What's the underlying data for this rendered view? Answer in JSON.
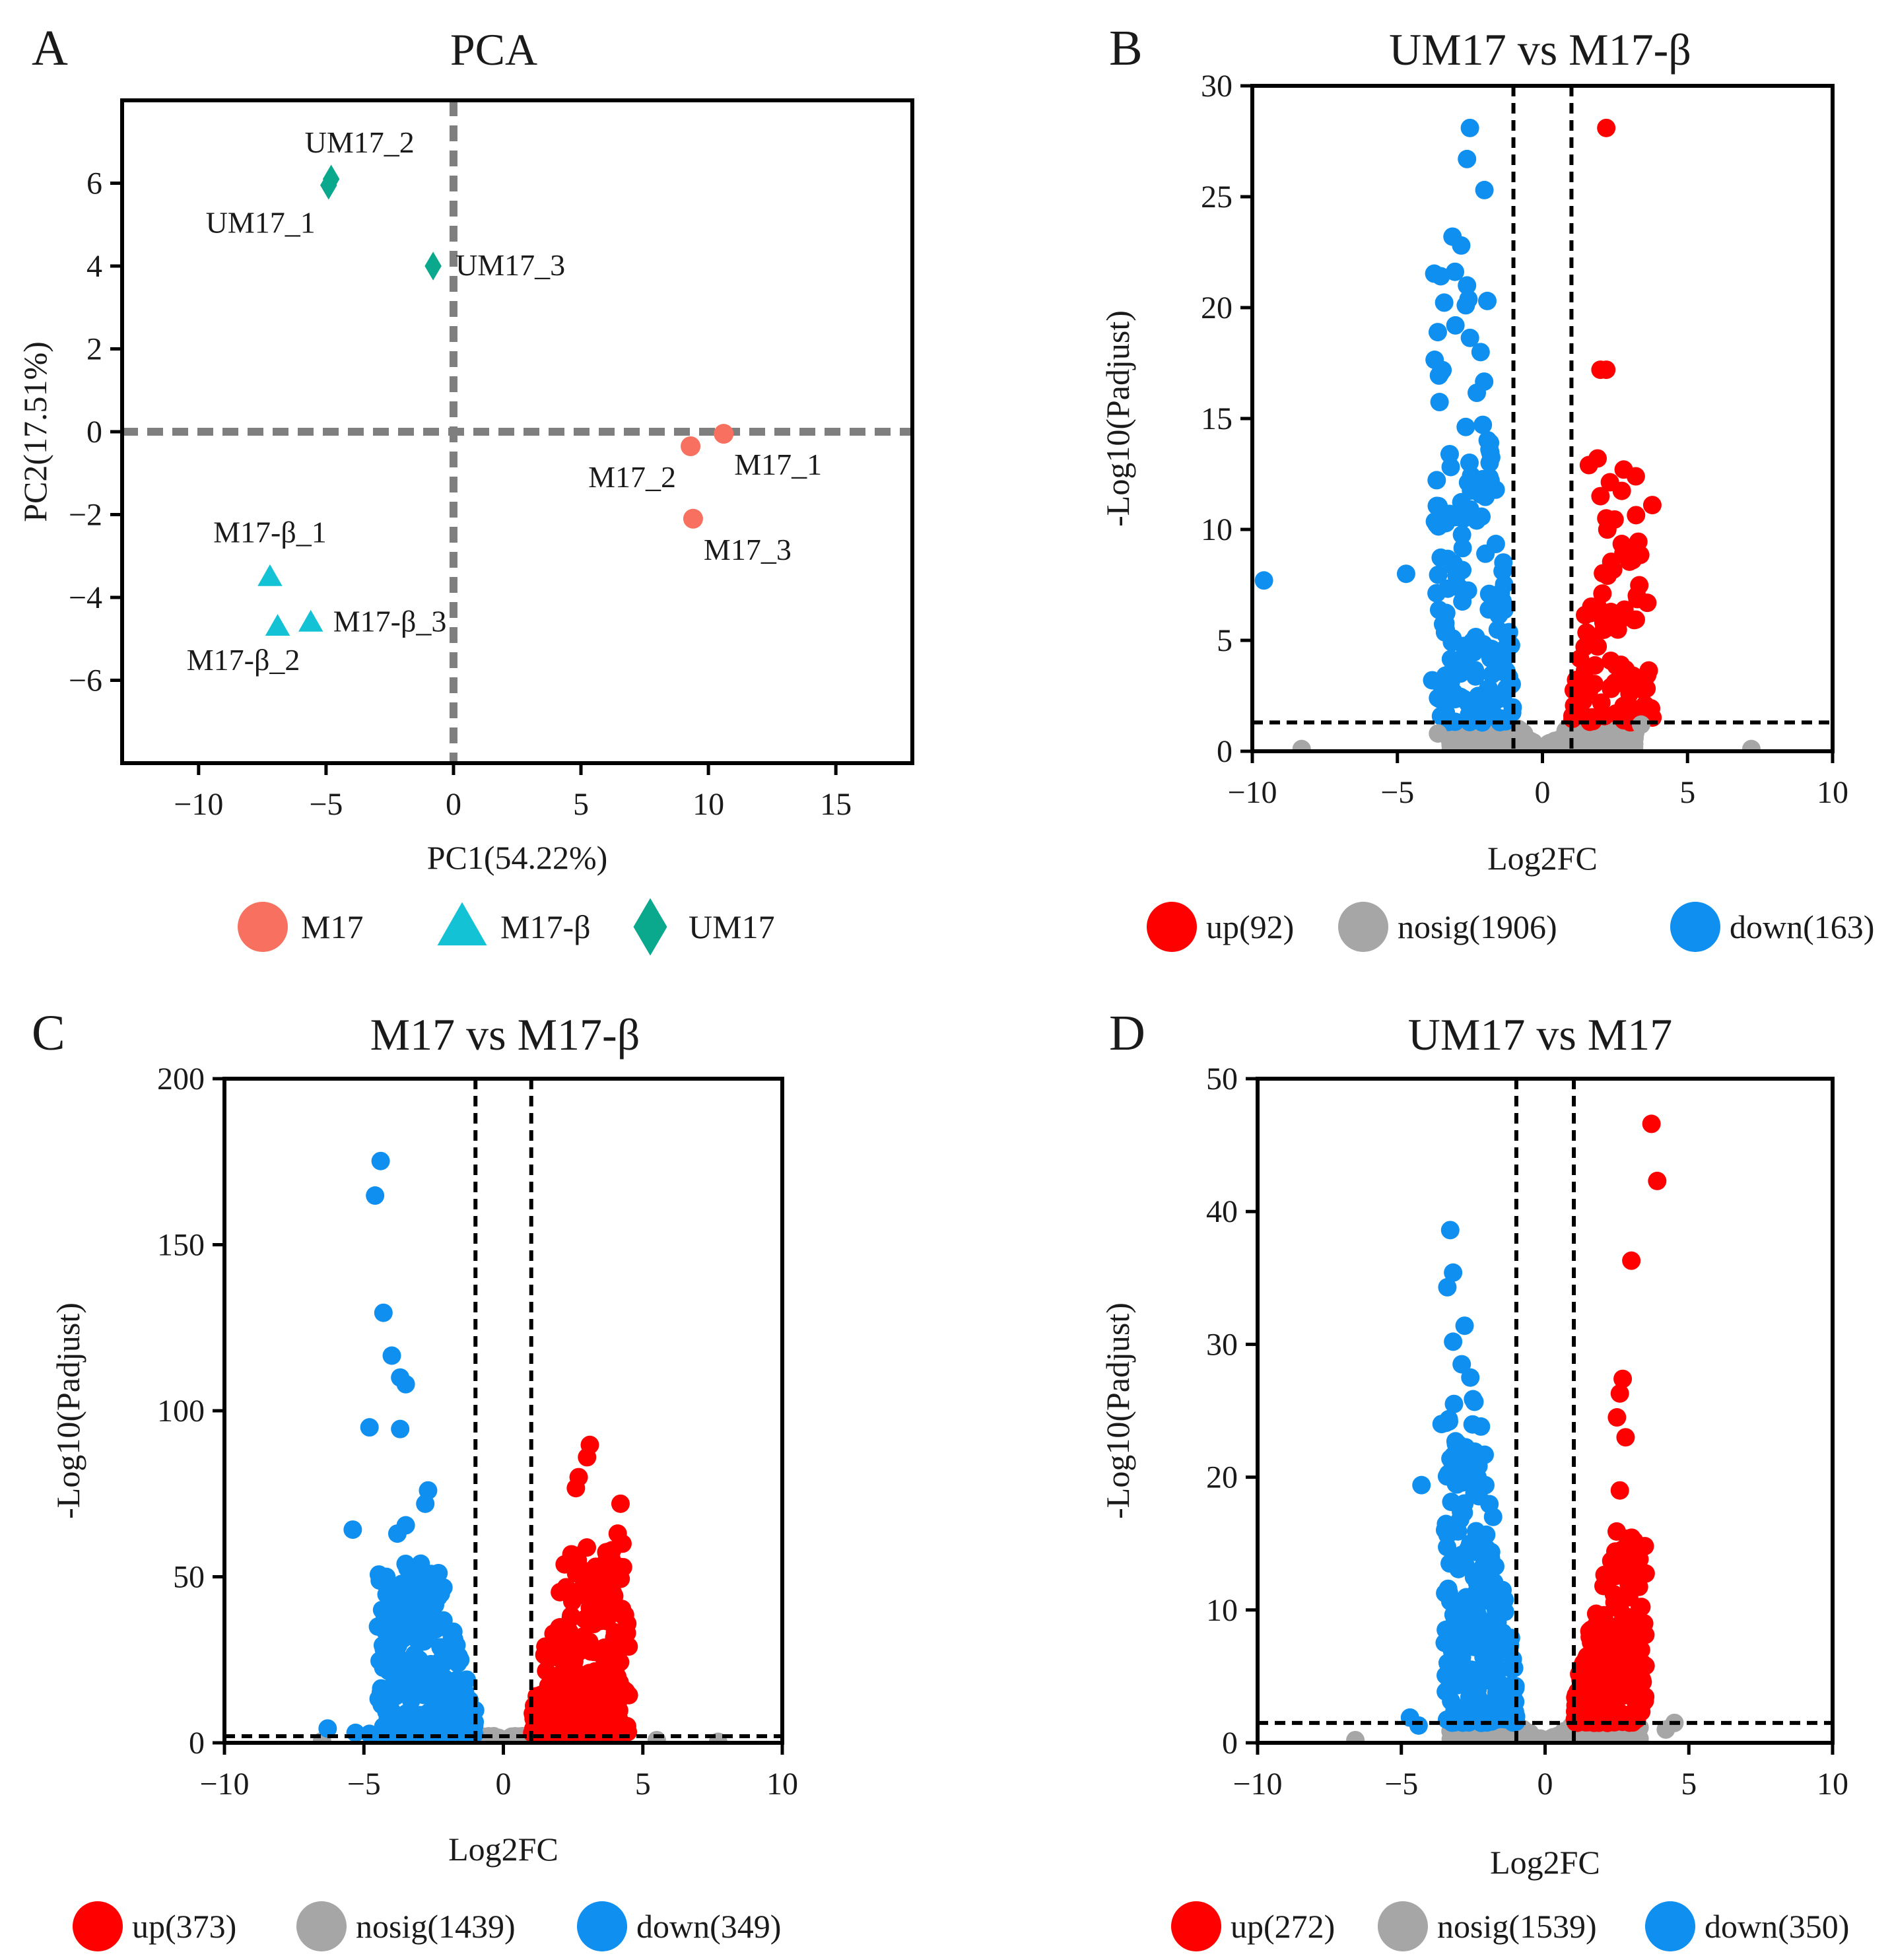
{
  "figure": {
    "colors": {
      "up": "#ff0000",
      "nosig": "#a6a6a6",
      "down": "#0f8ff0",
      "m17": "#f87060",
      "m17b": "#14c2d6",
      "um17": "#0aa88c",
      "refline": "#7f7f7f",
      "axis": "#000000"
    }
  },
  "chart_data": [
    {
      "panel": "A",
      "type": "scatter",
      "title": "PCA",
      "xlabel": "PC1(54.22%)",
      "ylabel": "PC2(17.51%)",
      "xlim": [
        -13,
        18
      ],
      "ylim": [
        -8,
        8
      ],
      "xticks": [
        -10,
        -5,
        0,
        5,
        10,
        15
      ],
      "xtick_labels": [
        "−10",
        "−5",
        "0",
        "5",
        "10",
        "15"
      ],
      "yticks": [
        -6,
        -4,
        -2,
        0,
        2,
        4,
        6
      ],
      "ytick_labels": [
        "−6",
        "−4",
        "−2",
        "0",
        "2",
        "4",
        "6"
      ],
      "reference_lines": {
        "x": 0,
        "y": 0
      },
      "legend": [
        {
          "label": "M17",
          "shape": "circle",
          "color_key": "m17"
        },
        {
          "label": "M17-β",
          "shape": "triangle",
          "color_key": "m17b"
        },
        {
          "label": "UM17",
          "shape": "diamond",
          "color_key": "um17"
        }
      ],
      "series": [
        {
          "name": "M17",
          "shape": "circle",
          "color_key": "m17",
          "points": [
            {
              "label": "M17_1",
              "x": 10.6,
              "y": -0.05,
              "label_pos": "below-right"
            },
            {
              "label": "M17_2",
              "x": 9.3,
              "y": -0.35,
              "label_pos": "below-left"
            },
            {
              "label": "M17_3",
              "x": 9.4,
              "y": -2.1,
              "label_pos": "below-right"
            }
          ]
        },
        {
          "name": "M17-β",
          "shape": "triangle",
          "color_key": "m17b",
          "points": [
            {
              "label": "M17-β_1",
              "x": -7.2,
              "y": -3.5,
              "label_pos": "above"
            },
            {
              "label": "M17-β_2",
              "x": -6.9,
              "y": -4.7,
              "label_pos": "below-left"
            },
            {
              "label": "M17-β_3",
              "x": -5.6,
              "y": -4.6,
              "label_pos": "right"
            }
          ]
        },
        {
          "name": "UM17",
          "shape": "diamond",
          "color_key": "um17",
          "points": [
            {
              "label": "UM17_2",
              "x": -4.8,
              "y": 6.1,
              "label_pos": "above-right"
            },
            {
              "label": "UM17_1",
              "x": -4.9,
              "y": 5.95,
              "label_pos": "below-left"
            },
            {
              "label": "UM17_3",
              "x": -0.8,
              "y": 4.0,
              "label_pos": "right"
            }
          ]
        }
      ]
    },
    {
      "panel": "B",
      "type": "scatter",
      "title": "UM17 vs M17-β",
      "xlabel": "Log2FC",
      "ylabel": "-Log10(Padjust)",
      "xlim": [
        -10,
        10
      ],
      "ylim": [
        0,
        30
      ],
      "xticks": [
        -10,
        -5,
        0,
        5,
        10
      ],
      "xtick_labels": [
        "−10",
        "−5",
        "0",
        "5",
        "10"
      ],
      "yticks": [
        0,
        5,
        10,
        15,
        20,
        25,
        30
      ],
      "ytick_labels": [
        "0",
        "5",
        "10",
        "15",
        "20",
        "25",
        "30"
      ],
      "vlines": [
        -1,
        1
      ],
      "hline": 1.3,
      "legend": [
        {
          "label": "up(92)",
          "color_key": "up"
        },
        {
          "label": "nosig(1906)",
          "color_key": "nosig"
        },
        {
          "label": "down(163)",
          "color_key": "down"
        }
      ],
      "counts": {
        "up": 92,
        "nosig": 1906,
        "down": 163
      },
      "sim": {
        "maxUp": 13,
        "maxDown": 22,
        "ymaxNS": 1.1,
        "xmaxNS": 3.2,
        "xmaxSig": 2.8,
        "nsDraw": 550
      },
      "highlight_points": {
        "up": [
          [
            2.2,
            28.1
          ],
          [
            2.0,
            17.2
          ],
          [
            2.2,
            17.2
          ],
          [
            2.8,
            12.7
          ],
          [
            2.7,
            3.9
          ],
          [
            2.5,
            3.1
          ],
          [
            2.8,
            1.4
          ],
          [
            1.9,
            13.2
          ],
          [
            1.6,
            12.9
          ],
          [
            2.0,
            11.5
          ],
          [
            2.2,
            10.5
          ]
        ],
        "down": [
          [
            -9.6,
            7.7
          ],
          [
            -4.7,
            8.0
          ],
          [
            -2.5,
            28.1
          ],
          [
            -2.6,
            26.7
          ],
          [
            -2.0,
            25.3
          ],
          [
            -3.1,
            23.2
          ],
          [
            -2.8,
            22.8
          ],
          [
            -2.6,
            21.0
          ],
          [
            -3.0,
            19.2
          ],
          [
            -1.9,
            20.3
          ],
          [
            -3.2,
            10.7
          ],
          [
            -3.8,
            3.2
          ],
          [
            -3.6,
            2.4
          ]
        ],
        "nosig": [
          [
            -8.3,
            0.1
          ],
          [
            7.2,
            0.1
          ],
          [
            3.4,
            1.2
          ],
          [
            -3.6,
            0.8
          ]
        ]
      }
    },
    {
      "panel": "C",
      "type": "scatter",
      "title": "M17 vs M17-β",
      "xlabel": "Log2FC",
      "ylabel": "-Log10(Padjust)",
      "xlim": [
        -10,
        10
      ],
      "ylim": [
        0,
        200
      ],
      "xticks": [
        -10,
        -5,
        0,
        5,
        10
      ],
      "xtick_labels": [
        "−10",
        "−5",
        "0",
        "5",
        "10"
      ],
      "yticks": [
        0,
        50,
        100,
        150,
        200
      ],
      "ytick_labels": [
        "0",
        "50",
        "100",
        "150",
        "200"
      ],
      "vlines": [
        -1,
        1
      ],
      "hline": 2,
      "legend": [
        {
          "label": "up(373)",
          "color_key": "up"
        },
        {
          "label": "nosig(1439)",
          "color_key": "nosig"
        },
        {
          "label": "down(349)",
          "color_key": "down"
        }
      ],
      "counts": {
        "up": 373,
        "nosig": 1439,
        "down": 349
      },
      "sim": {
        "maxUp": 60,
        "maxDown": 55,
        "ymaxNS": 14,
        "xmaxNS": 2.8,
        "xmaxSig": 3.5,
        "nsDraw": 420
      },
      "highlight_points": {
        "up": [
          [
            3.1,
            89.7
          ],
          [
            3.0,
            86.0
          ],
          [
            2.7,
            80.0
          ],
          [
            2.6,
            76.7
          ],
          [
            4.2,
            72.0
          ],
          [
            4.1,
            63.0
          ],
          [
            3.9,
            58.0
          ],
          [
            3.8,
            52.5
          ],
          [
            4.0,
            16.5
          ],
          [
            3.7,
            15.0
          ]
        ],
        "down": [
          [
            -4.4,
            175.2
          ],
          [
            -4.6,
            164.8
          ],
          [
            -4.3,
            129.5
          ],
          [
            -4.0,
            116.6
          ],
          [
            -3.7,
            110.0
          ],
          [
            -3.5,
            108.0
          ],
          [
            -4.8,
            95.0
          ],
          [
            -3.7,
            94.5
          ],
          [
            -2.7,
            76.0
          ],
          [
            -2.8,
            72.0
          ],
          [
            -3.5,
            65.5
          ],
          [
            -3.8,
            63.0
          ],
          [
            -5.4,
            64.2
          ],
          [
            -3.7,
            24.7
          ],
          [
            -6.3,
            4.3
          ],
          [
            -5.3,
            3.0
          ],
          [
            -4.8,
            2.7
          ]
        ],
        "nosig": [
          [
            7.7,
            0.3
          ],
          [
            -6.5,
            0.5
          ],
          [
            5.5,
            0.8
          ]
        ]
      }
    },
    {
      "panel": "D",
      "type": "scatter",
      "title": "UM17 vs M17",
      "xlabel": "Log2FC",
      "ylabel": "-Log10(Padjust)",
      "xlim": [
        -10,
        10
      ],
      "ylim": [
        0,
        50
      ],
      "xticks": [
        -10,
        -5,
        0,
        5,
        10
      ],
      "xtick_labels": [
        "−10",
        "−5",
        "0",
        "5",
        "10"
      ],
      "yticks": [
        0,
        10,
        20,
        30,
        40,
        50
      ],
      "ytick_labels": [
        "0",
        "10",
        "20",
        "30",
        "40",
        "50"
      ],
      "vlines": [
        -1,
        1
      ],
      "hline": 1.5,
      "legend": [
        {
          "label": "up(272)",
          "color_key": "up"
        },
        {
          "label": "nosig(1539)",
          "color_key": "nosig"
        },
        {
          "label": "down(350)",
          "color_key": "down"
        }
      ],
      "counts": {
        "up": 272,
        "nosig": 1539,
        "down": 350
      },
      "sim": {
        "maxUp": 16,
        "maxDown": 26,
        "ymaxNS": 1.3,
        "xmaxNS": 3.3,
        "xmaxSig": 2.5,
        "nsDraw": 480
      },
      "highlight_points": {
        "up": [
          [
            3.7,
            46.6
          ],
          [
            3.9,
            42.3
          ],
          [
            3.0,
            36.3
          ],
          [
            2.7,
            27.4
          ],
          [
            2.6,
            26.3
          ],
          [
            2.5,
            24.5
          ],
          [
            2.8,
            23.0
          ],
          [
            2.6,
            19.0
          ],
          [
            3.1,
            15.2
          ],
          [
            3.2,
            13.1
          ],
          [
            3.0,
            12.2
          ],
          [
            2.8,
            5.4
          ]
        ],
        "down": [
          [
            -3.3,
            38.6
          ],
          [
            -3.2,
            35.4
          ],
          [
            -3.4,
            34.3
          ],
          [
            -2.8,
            31.4
          ],
          [
            -3.2,
            30.2
          ],
          [
            -2.9,
            28.5
          ],
          [
            -2.6,
            27.5
          ],
          [
            -3.6,
            24.0
          ],
          [
            -3.1,
            22.5
          ],
          [
            -4.3,
            19.4
          ],
          [
            -4.7,
            1.9
          ],
          [
            -4.4,
            1.3
          ]
        ],
        "nosig": [
          [
            -6.6,
            0.2
          ],
          [
            4.5,
            1.5
          ],
          [
            4.2,
            1.0
          ]
        ]
      }
    }
  ]
}
